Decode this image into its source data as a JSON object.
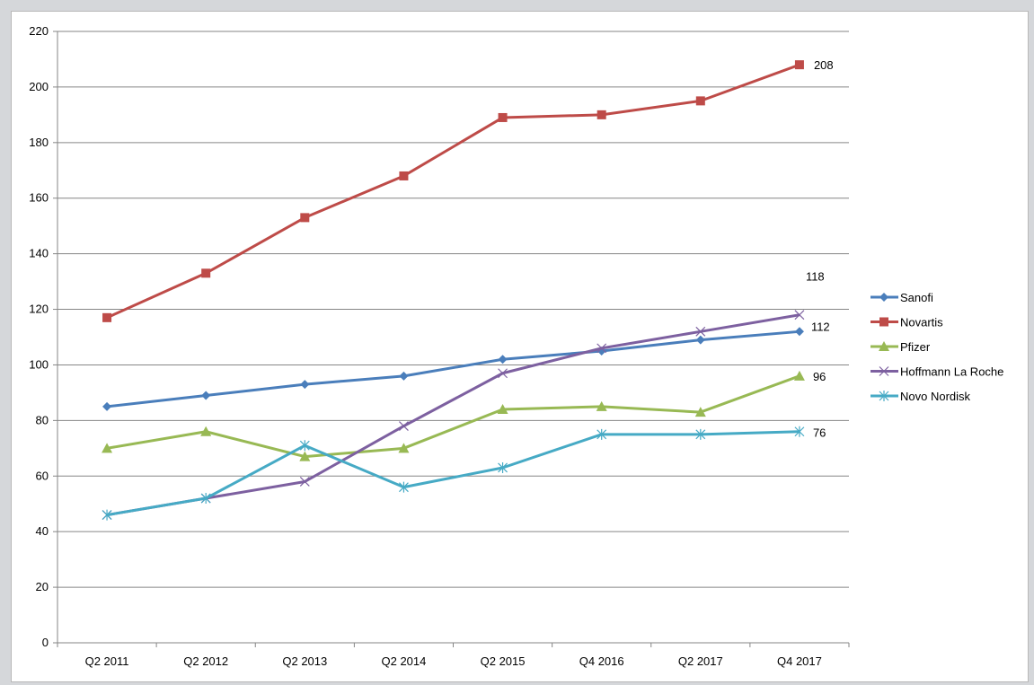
{
  "chart_data": {
    "type": "line",
    "title": "",
    "xlabel": "",
    "ylabel": "",
    "categories": [
      "Q2 2011",
      "Q2 2012",
      "Q2 2013",
      "Q2 2014",
      "Q2 2015",
      "Q4 2016",
      "Q2 2017",
      "Q4  2017"
    ],
    "ylim": [
      0,
      220
    ],
    "yticks": [
      0,
      20,
      40,
      60,
      80,
      100,
      120,
      140,
      160,
      180,
      200,
      220
    ],
    "grid": true,
    "legend_position": "right",
    "series": [
      {
        "name": "Sanofi",
        "color": "#4a7ebb",
        "marker": "diamond",
        "values": [
          85,
          89,
          93,
          96,
          102,
          105,
          109,
          112
        ],
        "end_label": "112"
      },
      {
        "name": "Novartis",
        "color": "#be4b48",
        "marker": "square",
        "values": [
          117,
          133,
          153,
          168,
          189,
          190,
          195,
          208
        ],
        "end_label": "208"
      },
      {
        "name": "Pfizer",
        "color": "#98b954",
        "marker": "triangle",
        "values": [
          70,
          76,
          67,
          70,
          84,
          85,
          83,
          96
        ],
        "end_label": "96"
      },
      {
        "name": "Hoffmann La Roche",
        "color": "#7d60a0",
        "marker": "x",
        "values": [
          46,
          52,
          58,
          78,
          97,
          106,
          112,
          118
        ],
        "end_label": "118"
      },
      {
        "name": "Novo Nordisk",
        "color": "#46aac5",
        "marker": "asterisk",
        "values": [
          46,
          52,
          71,
          56,
          63,
          75,
          75,
          76
        ],
        "end_label": "76"
      }
    ]
  }
}
